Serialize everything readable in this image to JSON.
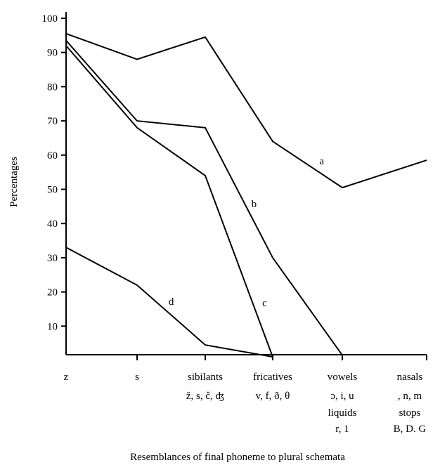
{
  "chart_data": {
    "type": "line",
    "title": "",
    "xlabel": "Resemblances of final phoneme to plural schemata",
    "ylabel": "Percentages",
    "ylim": [
      0,
      100
    ],
    "yticks": [
      10,
      20,
      30,
      40,
      50,
      60,
      70,
      80,
      90,
      100
    ],
    "categories": [
      [
        "z"
      ],
      [
        "s"
      ],
      [
        "sibilants",
        "ž, s, č, ʤ"
      ],
      [
        "fricatives",
        "v, f, ð, θ"
      ],
      [
        "vowels",
        "ɔ, i, u",
        "liquids",
        "r, 1"
      ],
      [
        "nasals",
        ", n, m",
        "stops",
        "B, D. G"
      ]
    ],
    "series": [
      {
        "name": "a",
        "values": [
          95.5,
          88,
          94.5,
          64,
          50.5,
          58.5
        ]
      },
      {
        "name": "b",
        "values": [
          93.5,
          70,
          68,
          30,
          1.5,
          null
        ]
      },
      {
        "name": "c",
        "values": [
          92,
          68,
          54,
          1,
          null,
          null
        ]
      },
      {
        "name": "d",
        "values": [
          33,
          22,
          4.5,
          1,
          null,
          null
        ]
      }
    ],
    "grid": false,
    "legend": "inline labels"
  }
}
